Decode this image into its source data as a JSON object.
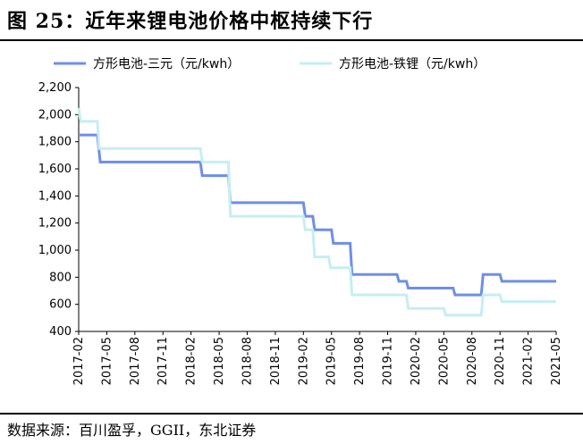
{
  "figure": {
    "title": "图 25：近年来锂电池价格中枢持续下行",
    "source": "数据来源：百川盈孚，GGII，东北证券"
  },
  "chart_data": {
    "type": "line",
    "step": true,
    "title": "图 25：近年来锂电池价格中枢持续下行",
    "xlabel": "",
    "ylabel": "",
    "ylim": [
      400,
      2200
    ],
    "yticks": [
      400,
      600,
      800,
      1000,
      1200,
      1400,
      1600,
      1800,
      2000,
      2200
    ],
    "ytick_labels": [
      "400",
      "600",
      "800",
      "1,000",
      "1,200",
      "1,400",
      "1,600",
      "1,800",
      "2,000",
      "2,200"
    ],
    "xlim": [
      0,
      51
    ],
    "xtick_positions": [
      0,
      3,
      6,
      9,
      12,
      15,
      18,
      21,
      24,
      27,
      30,
      33,
      36,
      39,
      42,
      45,
      48,
      51
    ],
    "xtick_labels": [
      "2017-02",
      "2017-05",
      "2017-08",
      "2017-11",
      "2018-02",
      "2018-05",
      "2018-08",
      "2018-11",
      "2019-02",
      "2019-05",
      "2019-08",
      "2019-11",
      "2020-02",
      "2020-05",
      "2020-08",
      "2020-11",
      "2021-02",
      "2021-05"
    ],
    "legend_position": "top",
    "series": [
      {
        "name": "方形电池-三元（元/kwh）",
        "color": "#6f8ee6",
        "points": [
          [
            0,
            1850
          ],
          [
            2,
            1850
          ],
          [
            2.3,
            1650
          ],
          [
            13,
            1650
          ],
          [
            13.2,
            1550
          ],
          [
            16,
            1550
          ],
          [
            16.2,
            1350
          ],
          [
            24,
            1350
          ],
          [
            24.2,
            1250
          ],
          [
            25,
            1250
          ],
          [
            25.2,
            1150
          ],
          [
            27,
            1150
          ],
          [
            27.2,
            1050
          ],
          [
            29,
            1050
          ],
          [
            29.2,
            820
          ],
          [
            34,
            820
          ],
          [
            34.2,
            770
          ],
          [
            35,
            770
          ],
          [
            35.2,
            720
          ],
          [
            40,
            720
          ],
          [
            40.2,
            670
          ],
          [
            43,
            670
          ],
          [
            43.2,
            820
          ],
          [
            45,
            820
          ],
          [
            45.2,
            770
          ],
          [
            51,
            770
          ]
        ]
      },
      {
        "name": "方形电池-铁锂（元/kwh）",
        "color": "#c5eef2",
        "points": [
          [
            0,
            2050
          ],
          [
            0.2,
            1950
          ],
          [
            2,
            1950
          ],
          [
            2.2,
            1750
          ],
          [
            13,
            1750
          ],
          [
            13.2,
            1650
          ],
          [
            16,
            1650
          ],
          [
            16.2,
            1250
          ],
          [
            24,
            1250
          ],
          [
            24.2,
            1150
          ],
          [
            25,
            1150
          ],
          [
            25.2,
            950
          ],
          [
            26.7,
            950
          ],
          [
            26.9,
            870
          ],
          [
            29,
            870
          ],
          [
            29.2,
            670
          ],
          [
            35,
            670
          ],
          [
            35.2,
            570
          ],
          [
            39,
            570
          ],
          [
            39.2,
            520
          ],
          [
            43,
            520
          ],
          [
            43.2,
            670
          ],
          [
            45,
            670
          ],
          [
            45.2,
            620
          ],
          [
            51,
            620
          ]
        ]
      }
    ]
  }
}
